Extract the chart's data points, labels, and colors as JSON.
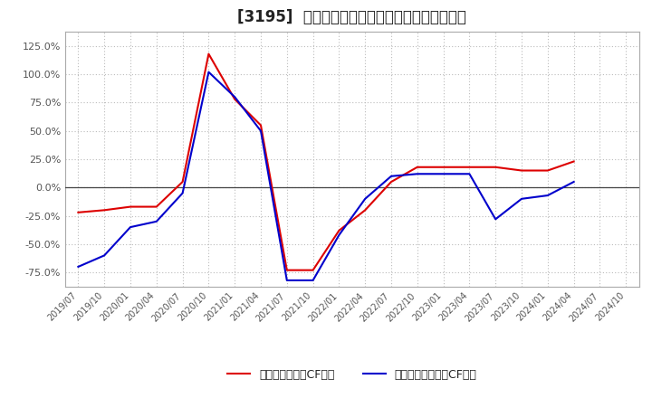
{
  "title": "[3195]  有利子負債キャッシュフロー比率の推移",
  "legend_label_red": "有利子負債営業CF比率",
  "legend_label_blue": "有利子負債フリーCF比率",
  "line_color_red": "#dd0000",
  "line_color_blue": "#0000cc",
  "background_color": "#ffffff",
  "grid_color": "#bbbbbb",
  "ylim_min": -0.875,
  "ylim_max": 1.375,
  "ytick_values": [
    -0.75,
    -0.5,
    -0.25,
    0.0,
    0.25,
    0.5,
    0.75,
    1.0,
    1.25
  ],
  "x_labels": [
    "2019/07",
    "2019/10",
    "2020/01",
    "2020/04",
    "2020/07",
    "2020/10",
    "2021/01",
    "2021/04",
    "2021/07",
    "2021/10",
    "2022/01",
    "2022/04",
    "2022/07",
    "2022/10",
    "2023/01",
    "2023/04",
    "2023/07",
    "2023/10",
    "2024/01",
    "2024/04",
    "2024/07",
    "2024/10"
  ],
  "red_y": [
    -0.22,
    -0.2,
    -0.17,
    -0.17,
    0.05,
    1.18,
    0.78,
    0.55,
    -0.73,
    -0.73,
    -0.38,
    -0.2,
    0.05,
    0.18,
    0.18,
    0.18,
    0.18,
    0.15,
    0.15,
    0.23,
    null,
    null
  ],
  "blue_y": [
    -0.7,
    -0.6,
    -0.35,
    -0.3,
    -0.05,
    1.02,
    0.8,
    0.5,
    -0.82,
    -0.82,
    -0.42,
    -0.1,
    0.1,
    0.12,
    0.12,
    0.12,
    -0.28,
    -0.1,
    -0.07,
    0.05,
    null,
    null
  ],
  "linewidth": 1.5,
  "title_fontsize": 12,
  "tick_fontsize": 8,
  "legend_fontsize": 9
}
